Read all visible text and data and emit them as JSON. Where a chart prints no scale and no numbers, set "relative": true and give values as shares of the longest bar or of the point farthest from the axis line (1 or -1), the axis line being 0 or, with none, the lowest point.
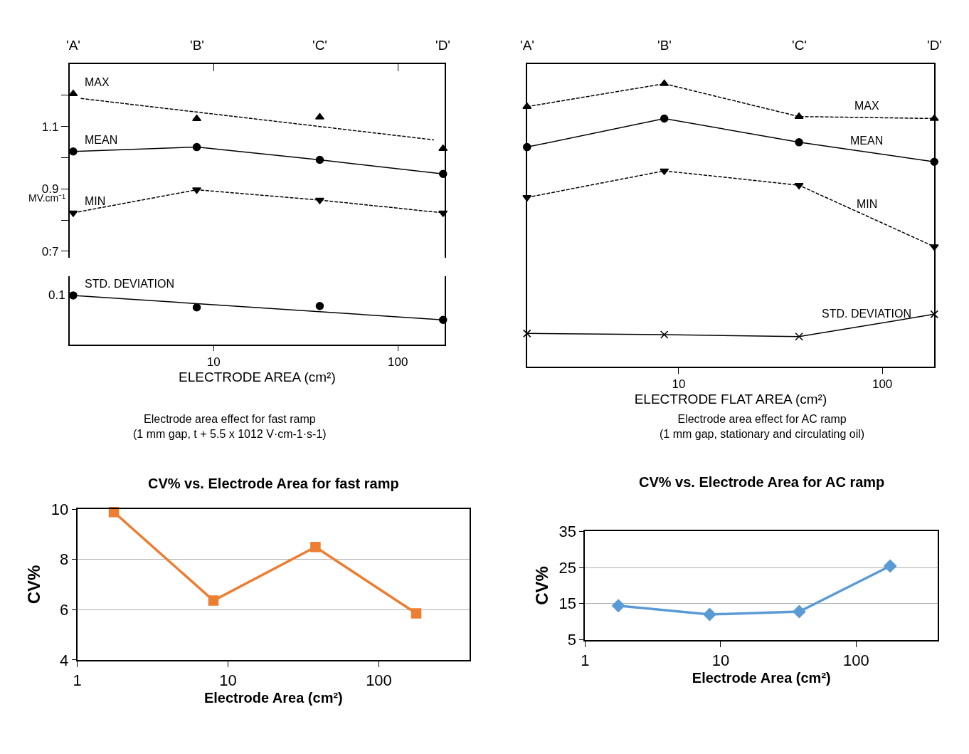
{
  "chart_data": [
    {
      "type": "line",
      "log": "x",
      "tick_labels": "y",
      "x": [
        1.73,
        8.1,
        37.7,
        176
      ],
      "xlim": [
        1.65,
        180
      ],
      "xticks": [
        10,
        100
      ],
      "annotations": [
        "'A'",
        "'B'",
        "'C'",
        "'D'"
      ],
      "ylim": [
        0.68,
        1.3
      ],
      "yticks": [
        {
          "value": 0.7,
          "label": "0:7"
        },
        {
          "value": 0.8,
          "label": null
        },
        0.9,
        {
          "value": 1.0,
          "label": null
        },
        1.1,
        {
          "value": 1.2,
          "label": null
        }
      ],
      "ylabel": "MV.cm⁻¹",
      "series": [
        {
          "name": "MAX",
          "type": "scatter",
          "marker": "triangle",
          "color": "#000000",
          "values": [
            1.205,
            1.125,
            1.13,
            1.029
          ]
        },
        {
          "type": "line",
          "marker": "none",
          "line_style": "dashed",
          "color": "#000000",
          "x": [
            1.9,
            157
          ],
          "values": [
            1.19,
            1.057
          ]
        },
        {
          "name": "MEAN",
          "marker": "circle",
          "line_style": "solid",
          "color": "#000000",
          "values": [
            1.02,
            1.034,
            0.993,
            0.948
          ]
        },
        {
          "name": "MIN",
          "marker": "triangle-down",
          "line_style": "dashed",
          "color": "#000000",
          "values": [
            0.823,
            0.897,
            0.864,
            0.823
          ]
        }
      ]
    },
    {
      "type": "line",
      "relative": true,
      "log": "x",
      "xlim": [
        1.65,
        180
      ],
      "xticks": [
        10,
        100
      ],
      "xlabel": "ELECTRODE AREA (cm²)",
      "annotations": [
        "0.1",
        "Electrode area effect for fast ramp\n(1 mm gap, t + 5.5 x 1012 V·cm-1·s-1)"
      ],
      "series": [
        {
          "name": "STD. DEVIATION",
          "type": "line",
          "marker": "circle",
          "line_style": "solid",
          "color": "#000000",
          "x": [
            1.73,
            176
          ],
          "values": [
            1,
            0.5
          ]
        },
        {
          "type": "scatter",
          "marker": "circle",
          "color": "#000000",
          "x": [
            8.1,
            37.7
          ],
          "values": [
            0.755,
            0.784
          ]
        }
      ]
    },
    {
      "type": "line",
      "relative": true,
      "log": "x",
      "x": [
        1.8,
        8.5,
        39,
        180
      ],
      "xlim": [
        1.8,
        180
      ],
      "xticks": [
        10,
        100
      ],
      "xlabel": "ELECTRODE FLAT AREA (cm²)",
      "annotations": [
        "'A'",
        "'B'",
        "'C'",
        "'D'",
        "Electrode area effect for AC ramp\n(1 mm gap, stationary and circulating oil)"
      ],
      "series": [
        {
          "name": "MAX",
          "marker": "triangle",
          "line_style": "dashed",
          "color": "#000000",
          "values": [
            0.919,
            1,
            0.884,
            0.877
          ]
        },
        {
          "name": "MEAN",
          "marker": "circle",
          "line_style": "solid",
          "color": "#000000",
          "values": [
            0.776,
            0.877,
            0.793,
            0.724
          ]
        },
        {
          "name": "MIN",
          "marker": "triangle-down",
          "line_style": "dashed",
          "color": "#000000",
          "values": [
            0.598,
            0.692,
            0.641,
            0.424
          ]
        },
        {
          "name": "STD. DEVIATION",
          "marker": "cross",
          "line_style": "solid",
          "color": "#000000",
          "values": [
            0.117,
            0.113,
            0.106,
            0.185
          ]
        }
      ]
    },
    {
      "type": "line",
      "title": "CV% vs. Electrode Area for fast ramp",
      "xlabel": "Electrode Area (cm²)",
      "ylabel": "CV%",
      "log": "x",
      "x": [
        1.75,
        8.0,
        38,
        177
      ],
      "xlim": [
        1,
        400
      ],
      "xticks": [
        1,
        10,
        100
      ],
      "ylim": [
        4,
        10
      ],
      "yticks": [
        4,
        6,
        8,
        10
      ],
      "grid": "y",
      "marker": "square",
      "line_style": "solid",
      "series": [
        {
          "color": "#ed7d31",
          "values": [
            9.88,
            6.36,
            8.49,
            5.85
          ]
        }
      ]
    },
    {
      "type": "line",
      "title": "CV% vs. Electrode Area for AC ramp",
      "xlabel": "Electrode Area (cm²)",
      "ylabel": "CV%",
      "log": "x",
      "x": [
        1.76,
        8.3,
        38,
        178
      ],
      "xlim": [
        1,
        400
      ],
      "xticks": [
        1,
        10,
        100
      ],
      "ylim": [
        5,
        35
      ],
      "yticks": [
        5,
        15,
        25,
        35
      ],
      "grid": "y",
      "marker": "diamond",
      "line_style": "solid",
      "series": [
        {
          "color": "#5b9bd5",
          "values": [
            14.4,
            12.0,
            12.8,
            25.4
          ]
        }
      ]
    }
  ]
}
